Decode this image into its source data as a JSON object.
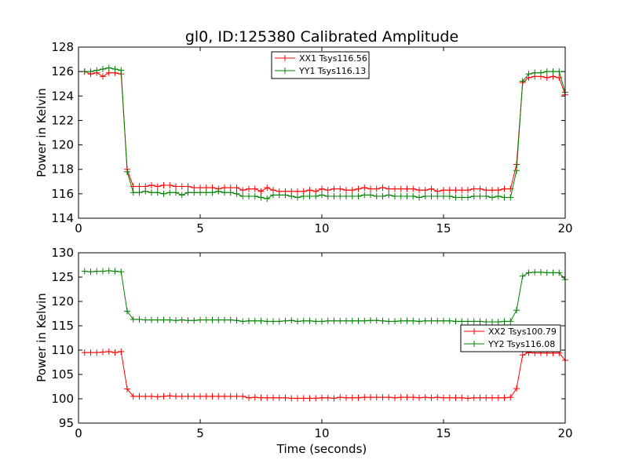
{
  "chart_data": [
    {
      "type": "line",
      "title": "gl0, ID:125380 Calibrated Amplitude",
      "xlabel": "",
      "ylabel": "Power in Kelvin",
      "xlim": [
        0,
        20
      ],
      "ylim": [
        114,
        128
      ],
      "xticks": [
        "0",
        "5",
        "10",
        "15",
        "20"
      ],
      "yticks": [
        "114",
        "116",
        "118",
        "120",
        "122",
        "124",
        "126",
        "128"
      ],
      "legend_position": "top-center",
      "x": [
        0.25,
        0.5,
        0.75,
        1.0,
        1.25,
        1.5,
        1.75,
        2.0,
        2.25,
        2.5,
        2.75,
        3.0,
        3.25,
        3.5,
        3.75,
        4.0,
        4.25,
        4.5,
        4.75,
        5.0,
        5.25,
        5.5,
        5.75,
        6.0,
        6.25,
        6.5,
        6.75,
        7.0,
        7.25,
        7.5,
        7.75,
        8.0,
        8.25,
        8.5,
        8.75,
        9.0,
        9.25,
        9.5,
        9.75,
        10.0,
        10.25,
        10.5,
        10.75,
        11.0,
        11.25,
        11.5,
        11.75,
        12.0,
        12.25,
        12.5,
        12.75,
        13.0,
        13.25,
        13.5,
        13.75,
        14.0,
        14.25,
        14.5,
        14.75,
        15.0,
        15.25,
        15.5,
        15.75,
        16.0,
        16.25,
        16.5,
        16.75,
        17.0,
        17.25,
        17.5,
        17.75,
        18.0,
        18.25,
        18.5,
        18.75,
        19.0,
        19.25,
        19.5,
        19.75,
        20.0
      ],
      "series": [
        {
          "name": "XX1 Tsys116.56",
          "color": "#ff0000",
          "values": [
            126.0,
            125.8,
            125.9,
            125.6,
            125.9,
            125.9,
            125.8,
            118.0,
            116.6,
            116.6,
            116.6,
            116.7,
            116.6,
            116.7,
            116.7,
            116.6,
            116.6,
            116.6,
            116.5,
            116.5,
            116.5,
            116.5,
            116.4,
            116.5,
            116.5,
            116.5,
            116.3,
            116.4,
            116.4,
            116.2,
            116.5,
            116.3,
            116.2,
            116.2,
            116.2,
            116.2,
            116.2,
            116.3,
            116.2,
            116.4,
            116.3,
            116.4,
            116.4,
            116.3,
            116.3,
            116.4,
            116.5,
            116.4,
            116.4,
            116.5,
            116.4,
            116.4,
            116.4,
            116.4,
            116.4,
            116.3,
            116.3,
            116.4,
            116.2,
            116.3,
            116.3,
            116.3,
            116.3,
            116.3,
            116.4,
            116.4,
            116.3,
            116.3,
            116.3,
            116.4,
            116.4,
            118.4,
            125.1,
            125.5,
            125.6,
            125.6,
            125.5,
            125.6,
            125.5,
            124.1
          ]
        },
        {
          "name": "YY1 Tsys116.13",
          "color": "#008000",
          "values": [
            126.0,
            126.0,
            126.1,
            126.2,
            126.3,
            126.2,
            126.1,
            117.8,
            116.1,
            116.1,
            116.2,
            116.1,
            116.1,
            116.0,
            116.1,
            116.1,
            115.9,
            116.1,
            116.1,
            116.1,
            116.1,
            116.1,
            116.2,
            116.1,
            116.1,
            116.0,
            115.8,
            115.8,
            115.8,
            115.7,
            115.6,
            115.9,
            115.9,
            115.9,
            115.8,
            115.7,
            115.8,
            115.8,
            115.8,
            115.9,
            115.8,
            115.8,
            115.8,
            115.8,
            115.8,
            115.8,
            115.9,
            115.9,
            115.8,
            115.8,
            115.9,
            115.8,
            115.8,
            115.8,
            115.8,
            115.7,
            115.8,
            115.8,
            115.8,
            115.8,
            115.8,
            115.7,
            115.7,
            115.7,
            115.8,
            115.8,
            115.8,
            115.7,
            115.8,
            115.7,
            115.7,
            117.9,
            125.2,
            125.8,
            125.9,
            125.9,
            126.0,
            126.0,
            126.0,
            124.3
          ]
        }
      ]
    },
    {
      "type": "line",
      "title": "",
      "xlabel": "Time (seconds)",
      "ylabel": "Power in Kelvin",
      "xlim": [
        0,
        20
      ],
      "ylim": [
        95,
        130
      ],
      "xticks": [
        "0",
        "5",
        "10",
        "15",
        "20"
      ],
      "yticks": [
        "95",
        "100",
        "105",
        "110",
        "115",
        "120",
        "125",
        "130"
      ],
      "legend_position": "center-right",
      "x": [
        0.25,
        0.5,
        0.75,
        1.0,
        1.25,
        1.5,
        1.75,
        2.0,
        2.25,
        2.5,
        2.75,
        3.0,
        3.25,
        3.5,
        3.75,
        4.0,
        4.25,
        4.5,
        4.75,
        5.0,
        5.25,
        5.5,
        5.75,
        6.0,
        6.25,
        6.5,
        6.75,
        7.0,
        7.25,
        7.5,
        7.75,
        8.0,
        8.25,
        8.5,
        8.75,
        9.0,
        9.25,
        9.5,
        9.75,
        10.0,
        10.25,
        10.5,
        10.75,
        11.0,
        11.25,
        11.5,
        11.75,
        12.0,
        12.25,
        12.5,
        12.75,
        13.0,
        13.25,
        13.5,
        13.75,
        14.0,
        14.25,
        14.5,
        14.75,
        15.0,
        15.25,
        15.5,
        15.75,
        16.0,
        16.25,
        16.5,
        16.75,
        17.0,
        17.25,
        17.5,
        17.75,
        18.0,
        18.25,
        18.5,
        18.75,
        19.0,
        19.25,
        19.5,
        19.75,
        20.0
      ],
      "series": [
        {
          "name": "XX2 Tsys100.79",
          "color": "#ff0000",
          "values": [
            109.5,
            109.5,
            109.5,
            109.6,
            109.7,
            109.5,
            109.7,
            102.0,
            100.5,
            100.5,
            100.5,
            100.5,
            100.4,
            100.5,
            100.6,
            100.5,
            100.5,
            100.5,
            100.5,
            100.5,
            100.5,
            100.5,
            100.5,
            100.5,
            100.5,
            100.5,
            100.5,
            100.2,
            100.3,
            100.2,
            100.2,
            100.2,
            100.2,
            100.2,
            100.1,
            100.1,
            100.1,
            100.1,
            100.1,
            100.2,
            100.2,
            100.1,
            100.3,
            100.2,
            100.2,
            100.2,
            100.3,
            100.3,
            100.3,
            100.3,
            100.3,
            100.2,
            100.3,
            100.3,
            100.3,
            100.2,
            100.3,
            100.2,
            100.3,
            100.2,
            100.2,
            100.2,
            100.2,
            100.1,
            100.2,
            100.2,
            100.2,
            100.2,
            100.2,
            100.2,
            100.3,
            102.1,
            109.0,
            109.5,
            109.4,
            109.4,
            109.4,
            109.4,
            109.4,
            107.9
          ]
        },
        {
          "name": "YY2 Tsys116.08",
          "color": "#008000",
          "values": [
            126.2,
            126.1,
            126.2,
            126.2,
            126.3,
            126.2,
            126.1,
            118.0,
            116.3,
            116.3,
            116.2,
            116.2,
            116.2,
            116.2,
            116.2,
            116.1,
            116.2,
            116.1,
            116.1,
            116.2,
            116.2,
            116.2,
            116.2,
            116.2,
            116.2,
            116.1,
            115.9,
            116.0,
            116.0,
            116.0,
            115.9,
            115.9,
            115.9,
            116.0,
            116.1,
            115.9,
            116.0,
            116.0,
            115.9,
            115.9,
            116.0,
            116.0,
            116.0,
            116.0,
            116.0,
            116.0,
            116.0,
            116.1,
            116.1,
            116.0,
            115.9,
            115.9,
            116.0,
            116.0,
            116.0,
            115.9,
            116.0,
            116.0,
            116.0,
            116.0,
            116.0,
            115.9,
            115.9,
            115.9,
            115.9,
            115.9,
            115.8,
            115.8,
            115.8,
            115.9,
            115.9,
            118.2,
            125.2,
            125.9,
            126.0,
            126.0,
            125.9,
            125.9,
            125.9,
            124.5
          ]
        }
      ]
    }
  ]
}
